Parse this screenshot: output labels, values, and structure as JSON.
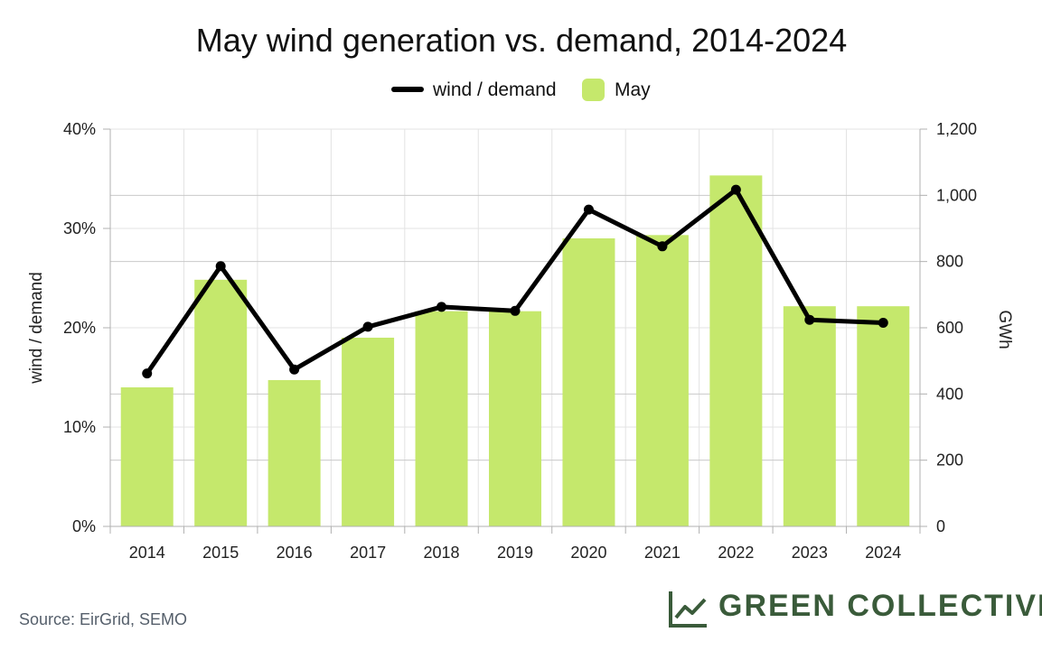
{
  "chart_data": {
    "type": "bar",
    "title": "May wind generation vs. demand, 2014-2024",
    "categories": [
      "2014",
      "2015",
      "2016",
      "2017",
      "2018",
      "2019",
      "2020",
      "2021",
      "2022",
      "2023",
      "2024"
    ],
    "series": [
      {
        "name": "May",
        "type": "bar",
        "axis": "right",
        "color": "#c5e86c",
        "values": [
          420,
          745,
          442,
          570,
          650,
          650,
          870,
          880,
          1060,
          665,
          665
        ]
      },
      {
        "name": "wind / demand",
        "type": "line",
        "axis": "left",
        "color": "#000000",
        "values": [
          15.4,
          26.2,
          15.8,
          20.1,
          22.1,
          21.7,
          31.9,
          28.2,
          33.9,
          20.8,
          20.5
        ]
      }
    ],
    "y_left": {
      "label": "wind / demand",
      "ylim": [
        0,
        40
      ],
      "ticks": [
        0,
        10,
        20,
        30,
        40
      ],
      "tick_labels": [
        "0%",
        "10%",
        "20%",
        "30%",
        "40%"
      ]
    },
    "y_right": {
      "label": "GWh",
      "ylim": [
        0,
        1200
      ],
      "ticks": [
        0,
        200,
        400,
        600,
        800,
        1000,
        1200
      ],
      "tick_labels": [
        "0",
        "200",
        "400",
        "600",
        "800",
        "1,000",
        "1,200"
      ]
    },
    "grid": true,
    "legend_position": "top-center"
  },
  "footer": {
    "source": "Source: EirGrid, SEMO",
    "brand": "GREEN COLLECTIVE"
  }
}
